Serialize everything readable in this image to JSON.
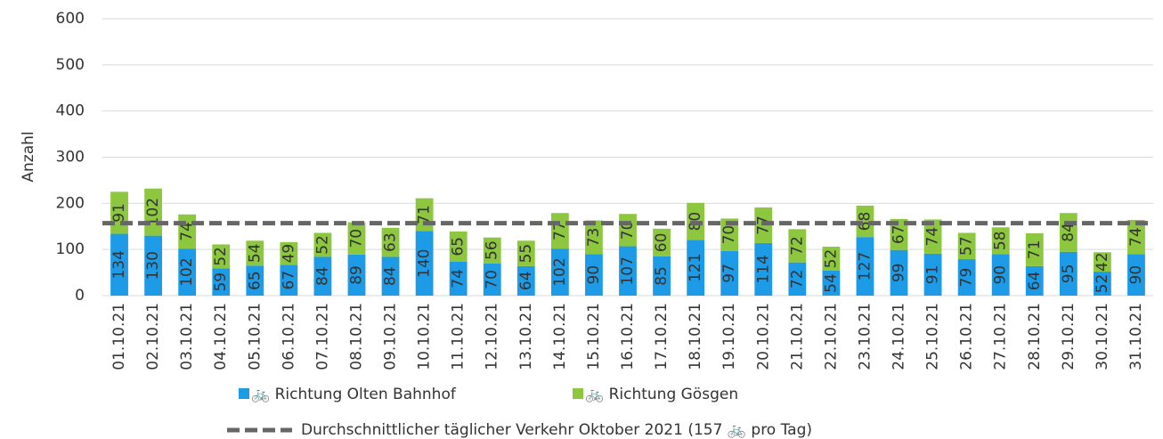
{
  "chart_data": {
    "type": "stacked_bar",
    "y_label": "Anzahl",
    "categories": [
      "01.10.21",
      "02.10.21",
      "03.10.21",
      "04.10.21",
      "05.10.21",
      "06.10.21",
      "07.10.21",
      "08.10.21",
      "09.10.21",
      "10.10.21",
      "11.10.21",
      "12.10.21",
      "13.10.21",
      "14.10.21",
      "15.10.21",
      "16.10.21",
      "17.10.21",
      "18.10.21",
      "19.10.21",
      "20.10.21",
      "21.10.21",
      "22.10.21",
      "23.10.21",
      "24.10.21",
      "25.10.21",
      "26.10.21",
      "27.10.21",
      "28.10.21",
      "29.10.21",
      "30.10.21",
      "31.10.21"
    ],
    "series": [
      {
        "name": "🚲 Richtung Olten Bahnhof",
        "color": "#1e9be6",
        "values": [
          134,
          130,
          102,
          59,
          65,
          67,
          84,
          89,
          84,
          140,
          74,
          70,
          64,
          102,
          90,
          107,
          85,
          121,
          97,
          114,
          72,
          54,
          127,
          99,
          91,
          79,
          90,
          64,
          95,
          52,
          90
        ]
      },
      {
        "name": "🚲 Richtung Gösgen",
        "color": "#8dc63f",
        "values": [
          91,
          102,
          74,
          52,
          54,
          49,
          52,
          70,
          63,
          71,
          65,
          56,
          55,
          77,
          73,
          70,
          60,
          80,
          70,
          77,
          72,
          52,
          68,
          67,
          74,
          57,
          58,
          71,
          84,
          42,
          74
        ]
      }
    ],
    "average": {
      "value": 157,
      "label": "Durchschnittlicher täglicher Verkehr Oktober 2021 (157 🚲 pro Tag)",
      "color": "#666666"
    },
    "ylim": [
      0,
      600
    ],
    "yticks": [
      0,
      100,
      200,
      300,
      400,
      500,
      600
    ],
    "grid": true
  }
}
